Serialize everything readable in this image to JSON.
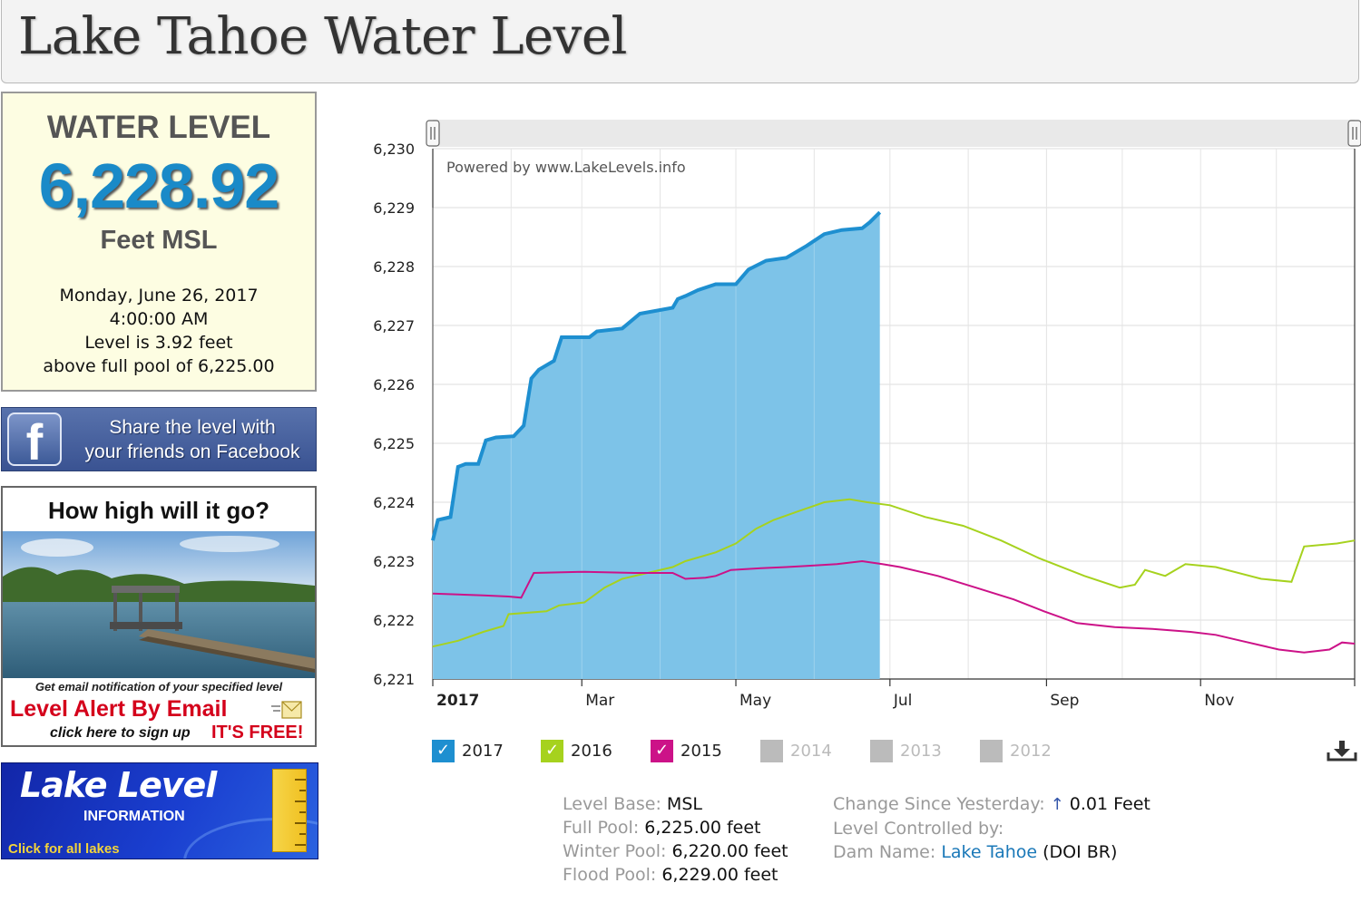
{
  "page_title": "Lake Tahoe Water Level",
  "level_box": {
    "heading": "WATER LEVEL",
    "value": "6,228.92",
    "unit": "Feet MSL",
    "date": "Monday, June 26, 2017",
    "time": "4:00:00 AM",
    "line1": "Level is 3.92 feet",
    "line2": "above full pool of 6,225.00"
  },
  "facebook_banner": {
    "logo": "f",
    "line1": "Share the level with",
    "line2": "your friends on Facebook"
  },
  "email_ad": {
    "headline": "How high will it go?",
    "sub": "Get email notification of your specified level",
    "alert": "Level Alert By Email",
    "click": "click here to sign up",
    "free": "IT'S FREE!"
  },
  "lake_level_banner": {
    "title": "Lake Level",
    "subtitle": "INFORMATION",
    "click": "Click for all lakes"
  },
  "chart_data": {
    "type": "line",
    "powered_by": "Powered by www.LakeLevels.info",
    "y_ticks": [
      "6,221",
      "6,222",
      "6,223",
      "6,224",
      "6,225",
      "6,226",
      "6,227",
      "6,228",
      "6,229",
      "6,230"
    ],
    "ylim": [
      6221,
      6230
    ],
    "x_ticks": [
      {
        "label": "2017",
        "day": 0
      },
      {
        "label": "Mar",
        "day": 59
      },
      {
        "label": "May",
        "day": 120
      },
      {
        "label": "Jul",
        "day": 181
      },
      {
        "label": "Sep",
        "day": 243
      },
      {
        "label": "Nov",
        "day": 304
      }
    ],
    "x_domain_days": [
      0,
      365
    ],
    "series": [
      {
        "name": "2017",
        "color": "#1e8fd0",
        "fill": "#7dc3e8",
        "checked": true,
        "points": [
          [
            0,
            6223.35
          ],
          [
            2,
            6223.7
          ],
          [
            7,
            6223.75
          ],
          [
            10,
            6224.6
          ],
          [
            13,
            6224.65
          ],
          [
            18,
            6224.65
          ],
          [
            21,
            6225.05
          ],
          [
            25,
            6225.1
          ],
          [
            32,
            6225.12
          ],
          [
            36,
            6225.3
          ],
          [
            39,
            6226.1
          ],
          [
            42,
            6226.25
          ],
          [
            48,
            6226.4
          ],
          [
            51,
            6226.8
          ],
          [
            62,
            6226.8
          ],
          [
            65,
            6226.9
          ],
          [
            75,
            6226.95
          ],
          [
            82,
            6227.2
          ],
          [
            95,
            6227.3
          ],
          [
            97,
            6227.45
          ],
          [
            100,
            6227.5
          ],
          [
            105,
            6227.6
          ],
          [
            112,
            6227.7
          ],
          [
            120,
            6227.7
          ],
          [
            125,
            6227.95
          ],
          [
            132,
            6228.1
          ],
          [
            140,
            6228.15
          ],
          [
            148,
            6228.35
          ],
          [
            155,
            6228.55
          ],
          [
            162,
            6228.62
          ],
          [
            170,
            6228.65
          ],
          [
            173,
            6228.75
          ],
          [
            177,
            6228.92
          ]
        ]
      },
      {
        "name": "2016",
        "color": "#a6d21e",
        "checked": true,
        "points": [
          [
            0,
            6221.55
          ],
          [
            10,
            6221.65
          ],
          [
            20,
            6221.8
          ],
          [
            28,
            6221.9
          ],
          [
            30,
            6222.1
          ],
          [
            45,
            6222.15
          ],
          [
            50,
            6222.25
          ],
          [
            60,
            6222.3
          ],
          [
            68,
            6222.55
          ],
          [
            75,
            6222.7
          ],
          [
            85,
            6222.8
          ],
          [
            95,
            6222.9
          ],
          [
            100,
            6223.0
          ],
          [
            112,
            6223.15
          ],
          [
            120,
            6223.3
          ],
          [
            128,
            6223.55
          ],
          [
            135,
            6223.7
          ],
          [
            145,
            6223.85
          ],
          [
            155,
            6224.0
          ],
          [
            165,
            6224.05
          ],
          [
            172,
            6224.0
          ],
          [
            181,
            6223.95
          ],
          [
            195,
            6223.75
          ],
          [
            210,
            6223.6
          ],
          [
            225,
            6223.35
          ],
          [
            240,
            6223.05
          ],
          [
            258,
            6222.75
          ],
          [
            272,
            6222.55
          ],
          [
            278,
            6222.6
          ],
          [
            282,
            6222.85
          ],
          [
            290,
            6222.75
          ],
          [
            298,
            6222.95
          ],
          [
            310,
            6222.9
          ],
          [
            328,
            6222.7
          ],
          [
            340,
            6222.65
          ],
          [
            345,
            6223.25
          ],
          [
            358,
            6223.3
          ],
          [
            365,
            6223.35
          ]
        ]
      },
      {
        "name": "2015",
        "color": "#cc1288",
        "checked": true,
        "points": [
          [
            0,
            6222.45
          ],
          [
            20,
            6222.42
          ],
          [
            30,
            6222.4
          ],
          [
            35,
            6222.38
          ],
          [
            40,
            6222.8
          ],
          [
            60,
            6222.82
          ],
          [
            80,
            6222.8
          ],
          [
            95,
            6222.8
          ],
          [
            100,
            6222.7
          ],
          [
            108,
            6222.72
          ],
          [
            112,
            6222.75
          ],
          [
            118,
            6222.85
          ],
          [
            130,
            6222.88
          ],
          [
            140,
            6222.9
          ],
          [
            148,
            6222.92
          ],
          [
            160,
            6222.95
          ],
          [
            170,
            6223.0
          ],
          [
            178,
            6222.95
          ],
          [
            185,
            6222.9
          ],
          [
            200,
            6222.75
          ],
          [
            215,
            6222.55
          ],
          [
            230,
            6222.35
          ],
          [
            242,
            6222.15
          ],
          [
            255,
            6221.95
          ],
          [
            270,
            6221.88
          ],
          [
            285,
            6221.85
          ],
          [
            300,
            6221.8
          ],
          [
            310,
            6221.75
          ],
          [
            320,
            6221.65
          ],
          [
            335,
            6221.5
          ],
          [
            345,
            6221.45
          ],
          [
            355,
            6221.5
          ],
          [
            360,
            6221.62
          ],
          [
            365,
            6221.6
          ]
        ]
      },
      {
        "name": "2014",
        "color": "#bbbbbb",
        "checked": false
      },
      {
        "name": "2013",
        "color": "#bbbbbb",
        "checked": false
      },
      {
        "name": "2012",
        "color": "#bbbbbb",
        "checked": false
      }
    ]
  },
  "details": {
    "level_base_label": "Level Base:",
    "level_base_value": "MSL",
    "full_pool_label": "Full Pool:",
    "full_pool_value": "6,225.00 feet",
    "winter_pool_label": "Winter Pool:",
    "winter_pool_value": "6,220.00 feet",
    "flood_pool_label": "Flood Pool:",
    "flood_pool_value": "6,229.00 feet",
    "change_label": "Change Since Yesterday:",
    "change_value": "0.01 Feet",
    "controlled_label": "Level Controlled by:",
    "dam_label": "Dam Name:",
    "dam_link": "Lake Tahoe",
    "dam_suffix": "(DOI BR)"
  },
  "icons": {
    "change_arrow": "arrow-up-icon",
    "download": "download-icon",
    "checkmark": "checkmark-icon"
  }
}
